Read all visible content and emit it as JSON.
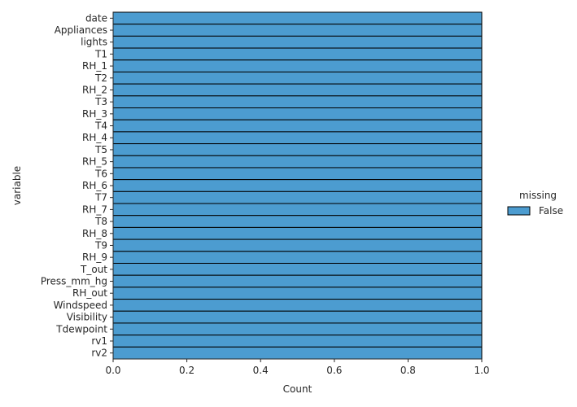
{
  "chart_data": {
    "type": "bar",
    "orientation": "horizontal",
    "stacked": true,
    "categories": [
      "date",
      "Appliances",
      "lights",
      "T1",
      "RH_1",
      "T2",
      "RH_2",
      "T3",
      "RH_3",
      "T4",
      "RH_4",
      "T5",
      "RH_5",
      "T6",
      "RH_6",
      "T7",
      "RH_7",
      "T8",
      "RH_8",
      "T9",
      "RH_9",
      "T_out",
      "Press_mm_hg",
      "RH_out",
      "Windspeed",
      "Visibility",
      "Tdewpoint",
      "rv1",
      "rv2"
    ],
    "series": [
      {
        "name": "False",
        "values": [
          1,
          1,
          1,
          1,
          1,
          1,
          1,
          1,
          1,
          1,
          1,
          1,
          1,
          1,
          1,
          1,
          1,
          1,
          1,
          1,
          1,
          1,
          1,
          1,
          1,
          1,
          1,
          1,
          1
        ]
      }
    ],
    "title": "",
    "xlabel": "Count",
    "ylabel": "variable",
    "xlim": [
      0,
      1.0
    ],
    "xticks": [
      "0.0",
      "0.2",
      "0.4",
      "0.6",
      "0.8",
      "1.0"
    ],
    "legend": {
      "title": "missing",
      "placement": "right"
    },
    "colors": {
      "False": "#4c9cd0",
      "edge": "#000000",
      "axis": "#262626"
    }
  }
}
